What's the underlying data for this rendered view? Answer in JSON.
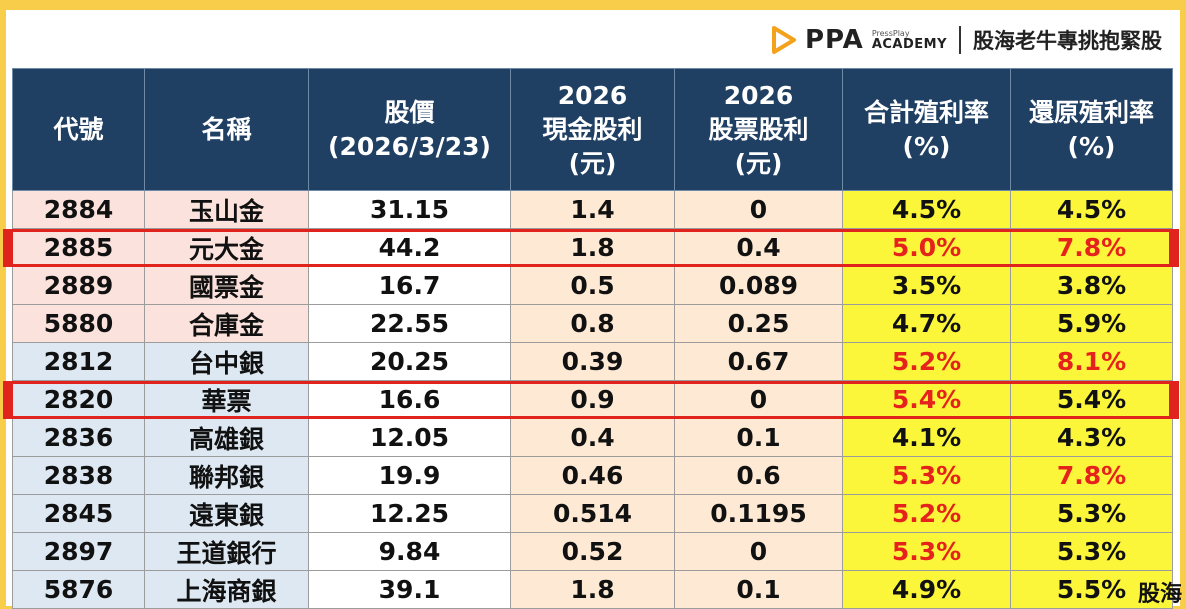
{
  "brand": {
    "logo_text": "PPA",
    "sub_small": "PressPlay",
    "sub_academy": "ACADEMY",
    "slogan": "股海老牛專挑抱緊股"
  },
  "headers": [
    [
      "代號"
    ],
    [
      "名稱"
    ],
    [
      "股價",
      "(2026/3/23)"
    ],
    [
      "2026",
      "現金股利",
      "(元)"
    ],
    [
      "2026",
      "股票股利",
      "(元)"
    ],
    [
      "合計殖利率",
      "(%)"
    ],
    [
      "還原殖利率",
      "(%)"
    ]
  ],
  "rows": [
    {
      "code": "2884",
      "name": "玉山金",
      "price": "31.15",
      "cash": "1.4",
      "stock": "0",
      "total": "4.5%",
      "restored": "4.5%",
      "group": "pink",
      "total_red": false,
      "restored_red": false,
      "highlight": false
    },
    {
      "code": "2885",
      "name": "元大金",
      "price": "44.2",
      "cash": "1.8",
      "stock": "0.4",
      "total": "5.0%",
      "restored": "7.8%",
      "group": "pink",
      "total_red": true,
      "restored_red": true,
      "highlight": true
    },
    {
      "code": "2889",
      "name": "國票金",
      "price": "16.7",
      "cash": "0.5",
      "stock": "0.089",
      "total": "3.5%",
      "restored": "3.8%",
      "group": "pink",
      "total_red": false,
      "restored_red": false,
      "highlight": false
    },
    {
      "code": "5880",
      "name": "合庫金",
      "price": "22.55",
      "cash": "0.8",
      "stock": "0.25",
      "total": "4.7%",
      "restored": "5.9%",
      "group": "pink",
      "total_red": false,
      "restored_red": false,
      "highlight": false
    },
    {
      "code": "2812",
      "name": "台中銀",
      "price": "20.25",
      "cash": "0.39",
      "stock": "0.67",
      "total": "5.2%",
      "restored": "8.1%",
      "group": "blue",
      "total_red": true,
      "restored_red": true,
      "highlight": false
    },
    {
      "code": "2820",
      "name": "華票",
      "price": "16.6",
      "cash": "0.9",
      "stock": "0",
      "total": "5.4%",
      "restored": "5.4%",
      "group": "blue",
      "total_red": true,
      "restored_red": false,
      "highlight": true
    },
    {
      "code": "2836",
      "name": "高雄銀",
      "price": "12.05",
      "cash": "0.4",
      "stock": "0.1",
      "total": "4.1%",
      "restored": "4.3%",
      "group": "blue",
      "total_red": false,
      "restored_red": false,
      "highlight": false
    },
    {
      "code": "2838",
      "name": "聯邦銀",
      "price": "19.9",
      "cash": "0.46",
      "stock": "0.6",
      "total": "5.3%",
      "restored": "7.8%",
      "group": "blue",
      "total_red": true,
      "restored_red": true,
      "highlight": false
    },
    {
      "code": "2845",
      "name": "遠東銀",
      "price": "12.25",
      "cash": "0.514",
      "stock": "0.1195",
      "total": "5.2%",
      "restored": "5.3%",
      "group": "blue",
      "total_red": true,
      "restored_red": false,
      "highlight": false
    },
    {
      "code": "2897",
      "name": "王道銀行",
      "price": "9.84",
      "cash": "0.52",
      "stock": "0",
      "total": "5.3%",
      "restored": "5.3%",
      "group": "blue",
      "total_red": true,
      "restored_red": false,
      "highlight": false
    },
    {
      "code": "5876",
      "name": "上海商銀",
      "price": "39.1",
      "cash": "1.8",
      "stock": "0.1",
      "total": "4.9%",
      "restored": "5.5%",
      "group": "blue",
      "total_red": false,
      "restored_red": false,
      "highlight": false
    }
  ],
  "colors": {
    "header_bg": "#1f3f63",
    "group_pink": "#fbe2dc",
    "group_blue": "#dde8f2",
    "price_bg": "#ffffff",
    "dividend_bg": "#fde9d4",
    "yield_bg": "#fbf63a",
    "highlight_red": "#e0231c",
    "page_bg": "#f7cd4a"
  },
  "watermark": "股海"
}
